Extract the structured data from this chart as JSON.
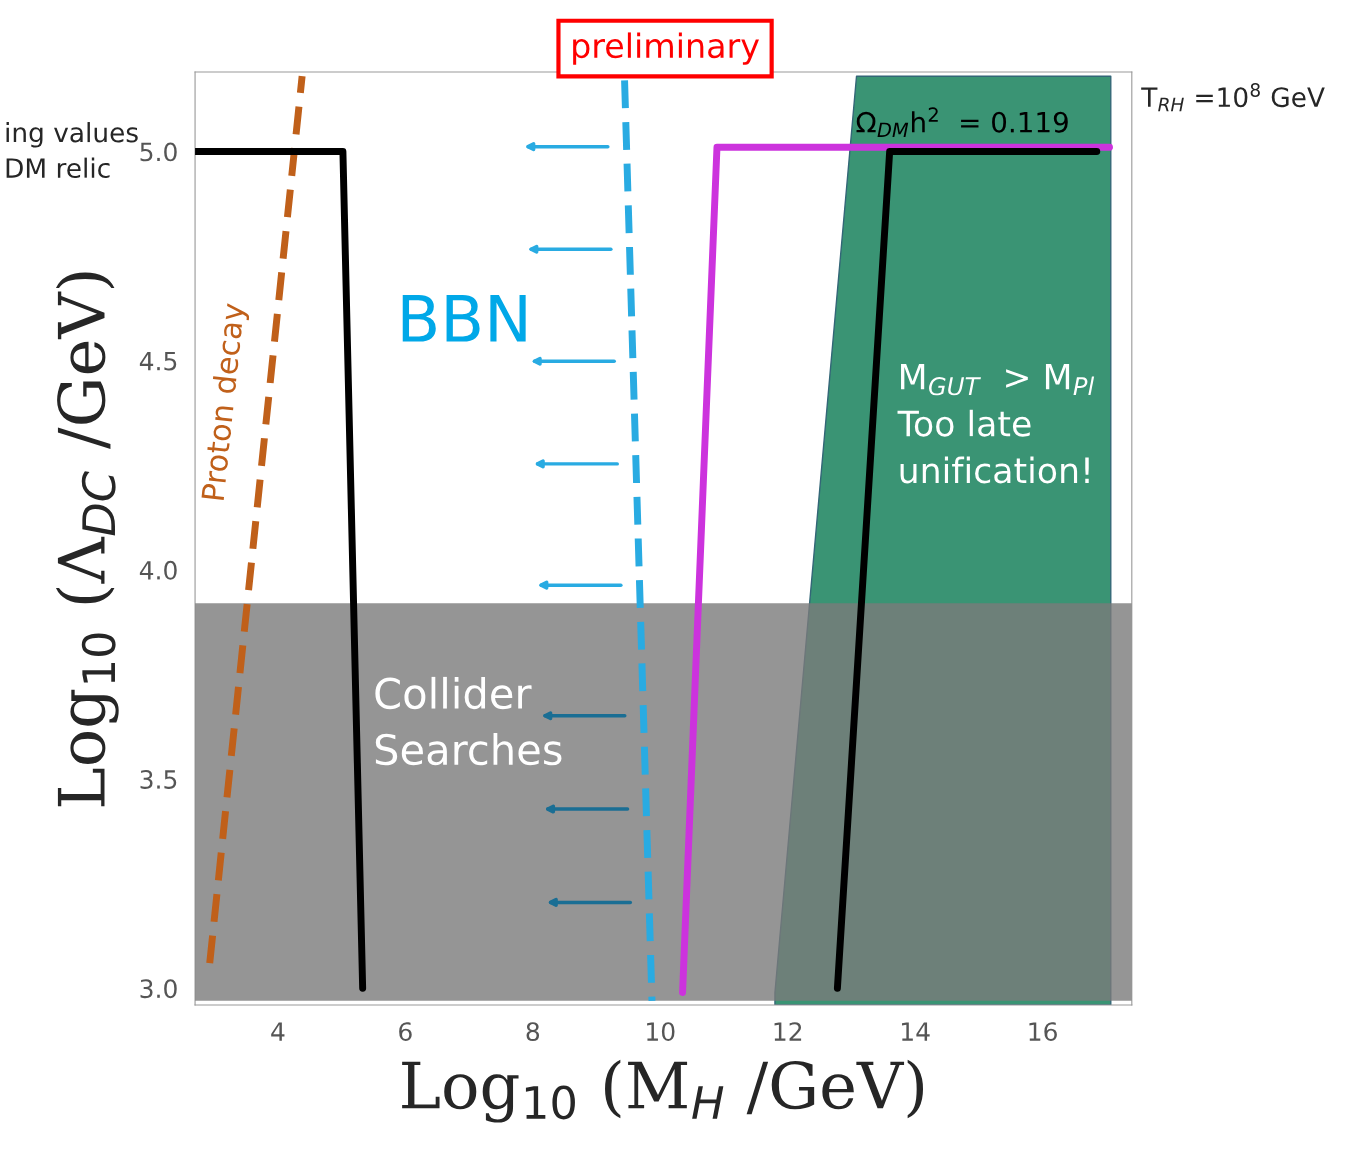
{
  "chart_data": {
    "type": "line",
    "xlabel": "Log$_{10}$ (M$_{H}$ /GeV)",
    "ylabel": "Log$_{10}$ (Λ$_{DC}$ /GeV)",
    "xlim": [
      2.7,
      17.4
    ],
    "ylim": [
      2.96,
      5.19
    ],
    "xticks": [
      4,
      6,
      8,
      10,
      12,
      14,
      16
    ],
    "yticks": [
      {
        "value": 3.0,
        "label": "3.0"
      },
      {
        "value": 3.5,
        "label": "3.5"
      },
      {
        "value": 4.0,
        "label": "4.0"
      },
      {
        "value": 4.5,
        "label": "4.5"
      },
      {
        "value": 5.0,
        "label": "5.0"
      }
    ],
    "grid": false,
    "legend": false,
    "series": [
      {
        "type": "area",
        "color": "#3a9474",
        "x": [
          11.8,
          13.08,
          17.07
        ],
        "values": [
          2.99,
          5.18,
          5.18
        ]
      },
      {
        "name": "Proton decay",
        "color": "#c0601a",
        "line_style": "dashed",
        "x": [
          2.93,
          4.38
        ],
        "values": [
          3.06,
          5.18
        ]
      },
      {
        "color": "#000000",
        "line_style": "solid",
        "x": [
          2.7,
          5.02,
          5.33
        ],
        "values": [
          5.0,
          5.0,
          3.0
        ]
      },
      {
        "color": "#29abe2",
        "line_style": "dashed",
        "x": [
          9.44,
          9.87
        ],
        "values": [
          5.17,
          2.97
        ]
      },
      {
        "color": "#cc33dd",
        "line_style": "solid",
        "x": [
          10.35,
          10.89,
          17.05
        ],
        "values": [
          2.99,
          5.01,
          5.01
        ]
      },
      {
        "color": "#000000",
        "line_style": "solid",
        "x": [
          12.78,
          13.6,
          16.85
        ],
        "values": [
          3.0,
          5.0,
          5.0
        ]
      }
    ],
    "bands": [
      {
        "axis": "y",
        "from": 2.97,
        "to": 3.92,
        "color": "#7a7a7a"
      }
    ],
    "annotations": [
      "BBN",
      "Collider\nSearches",
      "M$_{GUT}$  > M$_{Pl}$\nToo late\nunification!",
      "Ω$_{DM}$h$^{2}$  = 0.119",
      "preliminary",
      "T$_{RH}$ =10$^{8}$ GeV",
      "ing values\nDM relic"
    ]
  }
}
